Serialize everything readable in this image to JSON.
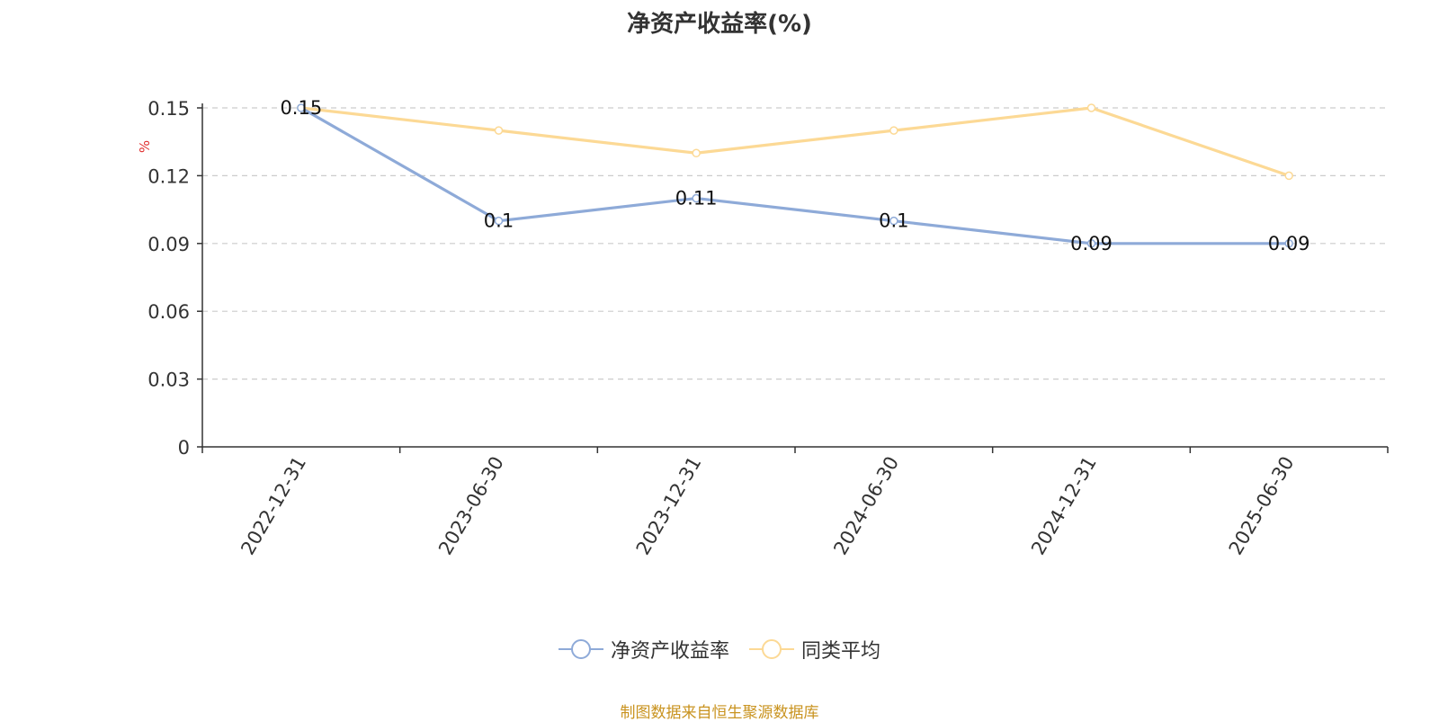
{
  "colors": {
    "series_primary": "#8eaad8",
    "series_avg": "#fcd995",
    "grid": "#cccccc",
    "axis": "#333333",
    "ylabel": "#e03030",
    "source": "#c9931f"
  },
  "chart_data": {
    "type": "line",
    "title": "净资产收益率(%)",
    "xlabel": "",
    "ylabel": "%",
    "categories": [
      "2022-12-31",
      "2023-06-30",
      "2023-12-31",
      "2024-06-30",
      "2024-12-31",
      "2025-06-30"
    ],
    "yticks": [
      "0",
      "0.03",
      "0.06",
      "0.09",
      "0.12",
      "0.15"
    ],
    "ylim": [
      0,
      0.15
    ],
    "grid": true,
    "legend_position": "bottom-center",
    "series": [
      {
        "name": "净资产收益率",
        "values": [
          0.15,
          0.1,
          0.11,
          0.1,
          0.09,
          0.09
        ],
        "labels": [
          "0.15",
          "0.1",
          "0.11",
          "0.1",
          "0.09",
          "0.09"
        ],
        "show_labels": true
      },
      {
        "name": "同类平均",
        "values": [
          0.15,
          0.14,
          0.13,
          0.14,
          0.15,
          0.12
        ],
        "show_labels": false
      }
    ]
  },
  "source_note": "制图数据来自恒生聚源数据库"
}
